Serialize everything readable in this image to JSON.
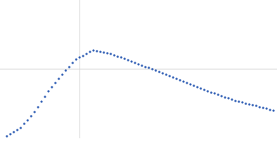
{
  "chart_data": {
    "type": "scatter",
    "color": "#3a66b8",
    "xlim": [
      0,
      400
    ],
    "ylim": [
      0,
      200
    ],
    "x": [
      10,
      15,
      20,
      25,
      30,
      35,
      40,
      45,
      50,
      55,
      60,
      65,
      70,
      75,
      80,
      85,
      90,
      95,
      100,
      105,
      110,
      115,
      120,
      125,
      130,
      135,
      140,
      145,
      150,
      155,
      160,
      165,
      170,
      175,
      180,
      185,
      190,
      195,
      200,
      205,
      210,
      215,
      220,
      225,
      230,
      235,
      240,
      245,
      250,
      255,
      260,
      265,
      270,
      275,
      280,
      285,
      290,
      295,
      300,
      305,
      310,
      315,
      320,
      325,
      330,
      335,
      340,
      345,
      350,
      355,
      360,
      365,
      370,
      375,
      380,
      385,
      390,
      395
    ],
    "y": [
      3,
      6,
      9,
      12,
      15,
      21,
      26,
      32,
      38,
      45,
      53,
      60,
      68,
      74,
      80,
      86,
      92,
      98,
      103,
      109,
      114,
      117,
      119,
      122,
      125,
      127,
      126,
      125,
      124,
      123,
      122,
      120,
      118,
      117,
      115,
      113,
      111,
      109,
      107,
      105,
      103,
      102,
      100,
      98,
      96,
      94,
      92,
      90,
      88,
      86,
      84,
      82,
      80,
      78,
      76,
      74,
      72,
      70,
      68,
      66,
      65,
      63,
      61,
      59,
      58,
      56,
      54,
      53,
      52,
      50,
      49,
      48,
      47,
      45,
      44,
      43,
      41,
      40
    ]
  }
}
